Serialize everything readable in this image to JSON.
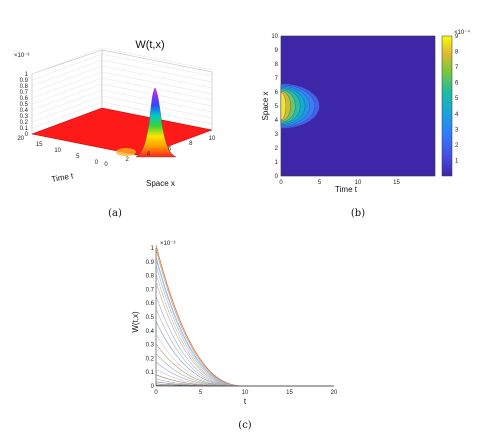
{
  "chart_data": [
    {
      "type": "surface",
      "panel": "(a)",
      "title": "W(t,x)",
      "xlabel": "Space x",
      "ylabel": "Time t",
      "z_exponent": "×10⁻³",
      "x_ticks": [
        "0",
        "2",
        "4",
        "6",
        "8",
        "10"
      ],
      "y_ticks": [
        "0",
        "5",
        "10",
        "15",
        "20"
      ],
      "z_ticks": [
        "0",
        "0.1",
        "0.2",
        "0.3",
        "0.4",
        "0.5",
        "0.6",
        "0.7",
        "0.8",
        "0.9",
        "1"
      ],
      "xlim": [
        0,
        10
      ],
      "ylim": [
        0,
        20
      ],
      "zlim": [
        0,
        0.001
      ],
      "peak": {
        "x": 5,
        "t": 0,
        "value": 0.001
      },
      "grid": true
    },
    {
      "type": "heatmap",
      "panel": "(b)",
      "xlabel": "Time t",
      "ylabel": "Space x",
      "colorbar_exponent": "×10⁻⁴",
      "x_ticks": [
        "0",
        "5",
        "10",
        "15"
      ],
      "y_ticks": [
        "0",
        "1",
        "2",
        "3",
        "4",
        "5",
        "6",
        "7",
        "8",
        "9",
        "10"
      ],
      "colorbar_ticks": [
        "1",
        "2",
        "3",
        "4",
        "5",
        "6",
        "7",
        "8",
        "9"
      ],
      "xlim": [
        0,
        20
      ],
      "ylim": [
        0,
        10
      ],
      "clim": [
        0,
        0.0009
      ],
      "blob": {
        "x_center": 5,
        "t_extent": 5
      }
    },
    {
      "type": "line",
      "panel": "(c)",
      "xlabel": "t",
      "ylabel": "W(t,x)",
      "y_exponent": "×10⁻³",
      "x_ticks": [
        "0",
        "5",
        "10",
        "15",
        "20"
      ],
      "y_ticks": [
        "0",
        "0.1",
        "0.2",
        "0.3",
        "0.4",
        "0.5",
        "0.6",
        "0.7",
        "0.8",
        "0.9",
        "1"
      ],
      "xlim": [
        0,
        20
      ],
      "ylim": [
        0,
        0.001
      ],
      "series_initial_values": [
        0.001,
        0.00097,
        0.00092,
        0.0009,
        0.00086,
        0.0008,
        0.00074,
        0.00064,
        0.00055,
        0.00046,
        0.00037,
        0.0003,
        0.00023,
        0.00017,
        0.00012,
        8e-05,
        5e-05,
        3e-05,
        1.5e-05,
        5e-06,
        1e-06
      ],
      "decay_to_zero_by_t": 10
    }
  ],
  "captions": {
    "a": "(a)",
    "b": "(b)",
    "c": "(c)"
  },
  "colors": {
    "surface_base": "#ff1a1a",
    "heat_bg": "#3e26a8",
    "heat_top": "#f9fb0e",
    "curve_top": "#e07b39"
  }
}
